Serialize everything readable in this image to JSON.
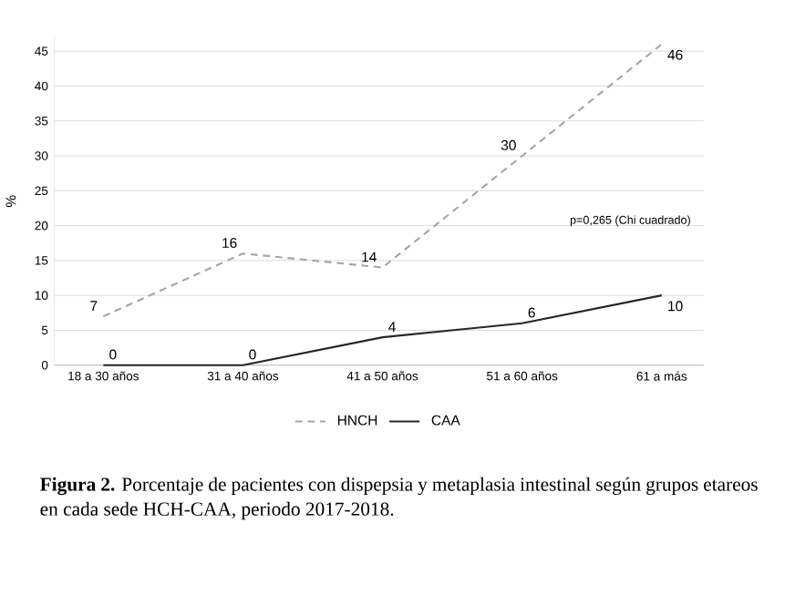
{
  "chart_data": {
    "type": "line",
    "ylabel": "%",
    "categories": [
      "18 a 30 años",
      "31 a 40 años",
      "41 a 50 años",
      "51 a 60 años",
      "61 a más"
    ],
    "series": [
      {
        "name": "HNCH",
        "color": "#a6a6a6",
        "line_style": "dashed",
        "values": [
          7,
          16,
          14,
          30,
          46
        ]
      },
      {
        "name": "CAA",
        "color": "#262626",
        "line_style": "solid",
        "values": [
          0,
          0,
          4,
          6,
          10
        ]
      }
    ],
    "ylim": [
      0,
      47
    ],
    "yticks": [
      0,
      5,
      10,
      15,
      20,
      25,
      30,
      35,
      40,
      45
    ],
    "grid": "y",
    "legend": "bottom",
    "marker": "none",
    "data_labels": true,
    "annotations": [
      "p=0,265 (Chi cuadrado)",
      "**Figura 2.** Porcentaje de pacientes con dispepsia y metaplasia intestinal según grupos etareos en cada sede HCH-CAA, periodo 2017-2018."
    ]
  }
}
